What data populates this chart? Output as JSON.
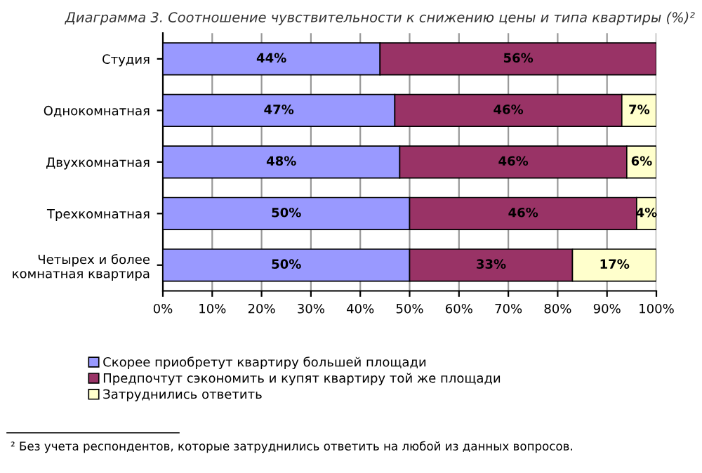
{
  "chart_data": {
    "type": "bar",
    "orientation": "horizontal",
    "stacked": true,
    "title": "Диаграмма 3. Соотношение чувствительности к снижению цены и типа квартиры (%)²",
    "categories": [
      "Студия",
      "Однокомнатная",
      "Двухкомнатная",
      "Трехкомнатная",
      "Четырех и более\nкомнатная квартира"
    ],
    "series": [
      {
        "name": "Скорее приобретут квартиру большей площади",
        "color": "#9999ff",
        "values": [
          44,
          47,
          48,
          50,
          50
        ],
        "value_labels": [
          "44%",
          "47%",
          "48%",
          "50%",
          "50%"
        ]
      },
      {
        "name": "Предпочтут сэкономить и купят квартиру той же площади",
        "color": "#993366",
        "values": [
          56,
          46,
          46,
          46,
          33
        ],
        "value_labels": [
          "56%",
          "46%",
          "46%",
          "46%",
          "33%"
        ]
      },
      {
        "name": "Затруднились ответить",
        "color": "#ffffcc",
        "values": [
          null,
          7,
          6,
          4,
          17
        ],
        "value_labels": [
          null,
          "7%",
          "6%",
          "4%",
          "17%"
        ]
      }
    ],
    "xlim": [
      0,
      100
    ],
    "xticks": [
      {
        "value": 0,
        "label": "0%"
      },
      {
        "value": 10,
        "label": "10%"
      },
      {
        "value": 20,
        "label": "20%"
      },
      {
        "value": 30,
        "label": "30%"
      },
      {
        "value": 40,
        "label": "40%"
      },
      {
        "value": 50,
        "label": "50%"
      },
      {
        "value": 60,
        "label": "60%"
      },
      {
        "value": 70,
        "label": "70%"
      },
      {
        "value": 80,
        "label": "80%"
      },
      {
        "value": 90,
        "label": "90%"
      },
      {
        "value": 100,
        "label": "100%"
      }
    ],
    "grid": "x",
    "legend": "bottom",
    "annotations": [
      "² Без учета респондентов, которые затруднились ответить на любой из данных вопросов."
    ]
  }
}
